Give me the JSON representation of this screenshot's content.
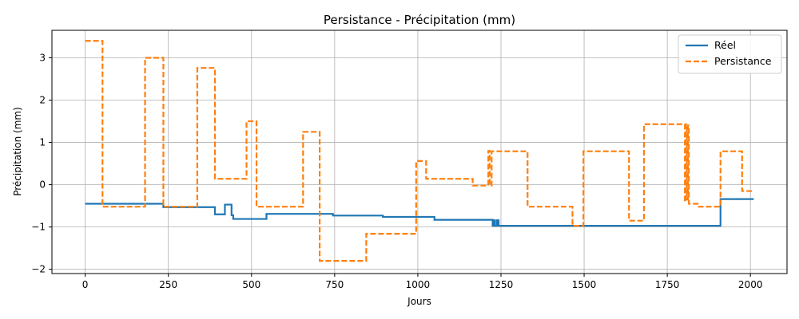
{
  "chart_data": {
    "type": "line",
    "title": "Persistance - Précipitation (mm)",
    "xlabel": "Jours",
    "ylabel": "Précipitation (mm)",
    "xlim": [
      -100,
      2110
    ],
    "ylim": [
      -2.1,
      3.65
    ],
    "xticks": [
      0,
      250,
      500,
      750,
      1000,
      1250,
      1500,
      1750,
      2000
    ],
    "yticks": [
      -2,
      -1,
      0,
      1,
      2,
      3
    ],
    "grid": true,
    "legend_position": "top-right",
    "series": [
      {
        "name": "Réel",
        "color": "#1f77b4",
        "style": "solid",
        "x": [
          0,
          235,
          235,
          390,
          390,
          420,
          420,
          440,
          440,
          445,
          445,
          545,
          545,
          745,
          745,
          895,
          895,
          1050,
          1050,
          1225,
          1225,
          1228,
          1228,
          1232,
          1232,
          1238,
          1238,
          1243,
          1243,
          1910,
          1910,
          2010
        ],
        "y": [
          -0.45,
          -0.45,
          -0.53,
          -0.53,
          -0.7,
          -0.7,
          -0.47,
          -0.47,
          -0.72,
          -0.72,
          -0.81,
          -0.81,
          -0.69,
          -0.69,
          -0.73,
          -0.73,
          -0.76,
          -0.76,
          -0.83,
          -0.83,
          -0.97,
          -0.97,
          -0.84,
          -0.84,
          -0.97,
          -0.97,
          -0.84,
          -0.84,
          -0.97,
          -0.97,
          -0.34,
          -0.34
        ]
      },
      {
        "name": "Persistance",
        "color": "#ff7f0e",
        "style": "dashed",
        "x": [
          0,
          52,
          52,
          180,
          180,
          235,
          235,
          337,
          337,
          390,
          390,
          485,
          485,
          515,
          515,
          655,
          655,
          705,
          705,
          845,
          845,
          995,
          995,
          1025,
          1025,
          1165,
          1165,
          1212,
          1212,
          1216,
          1216,
          1222,
          1222,
          1330,
          1330,
          1465,
          1465,
          1498,
          1498,
          1635,
          1635,
          1680,
          1680,
          1803,
          1803,
          1806,
          1806,
          1809,
          1809,
          1812,
          1812,
          1815,
          1815,
          1845,
          1845,
          1910,
          1910,
          1975,
          1975,
          2010
        ],
        "y": [
          3.4,
          3.4,
          -0.52,
          -0.52,
          3.0,
          3.0,
          -0.52,
          -0.52,
          2.76,
          2.76,
          0.14,
          0.14,
          1.5,
          1.5,
          -0.52,
          -0.52,
          1.25,
          1.25,
          -1.8,
          -1.8,
          -1.16,
          -1.16,
          0.56,
          0.56,
          0.14,
          0.14,
          -0.02,
          -0.02,
          0.8,
          0.8,
          -0.02,
          -0.02,
          0.79,
          0.79,
          -0.52,
          -0.52,
          -0.97,
          -0.97,
          0.79,
          0.79,
          -0.85,
          -0.85,
          1.43,
          1.43,
          -0.4,
          -0.4,
          1.43,
          1.43,
          -0.35,
          -0.35,
          1.4,
          1.4,
          -0.45,
          -0.45,
          -0.52,
          -0.52,
          0.79,
          0.79,
          -0.15,
          -0.15
        ]
      }
    ]
  }
}
